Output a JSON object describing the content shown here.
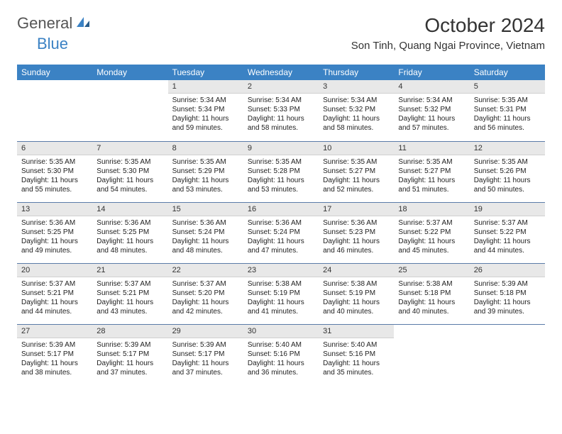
{
  "logo": {
    "text1": "General",
    "text2": "Blue"
  },
  "title": "October 2024",
  "location": "Son Tinh, Quang Ngai Province, Vietnam",
  "colors": {
    "header_bg": "#3b82c4",
    "header_fg": "#ffffff",
    "daynum_bg": "#e8e8e8",
    "week_border": "#5a7ba8",
    "logo_gray": "#555555",
    "logo_blue": "#3b82c4"
  },
  "day_headers": [
    "Sunday",
    "Monday",
    "Tuesday",
    "Wednesday",
    "Thursday",
    "Friday",
    "Saturday"
  ],
  "weeks": [
    [
      {
        "n": "",
        "sr": "",
        "ss": "",
        "dl": ""
      },
      {
        "n": "",
        "sr": "",
        "ss": "",
        "dl": ""
      },
      {
        "n": "1",
        "sr": "Sunrise: 5:34 AM",
        "ss": "Sunset: 5:34 PM",
        "dl": "Daylight: 11 hours and 59 minutes."
      },
      {
        "n": "2",
        "sr": "Sunrise: 5:34 AM",
        "ss": "Sunset: 5:33 PM",
        "dl": "Daylight: 11 hours and 58 minutes."
      },
      {
        "n": "3",
        "sr": "Sunrise: 5:34 AM",
        "ss": "Sunset: 5:32 PM",
        "dl": "Daylight: 11 hours and 58 minutes."
      },
      {
        "n": "4",
        "sr": "Sunrise: 5:34 AM",
        "ss": "Sunset: 5:32 PM",
        "dl": "Daylight: 11 hours and 57 minutes."
      },
      {
        "n": "5",
        "sr": "Sunrise: 5:35 AM",
        "ss": "Sunset: 5:31 PM",
        "dl": "Daylight: 11 hours and 56 minutes."
      }
    ],
    [
      {
        "n": "6",
        "sr": "Sunrise: 5:35 AM",
        "ss": "Sunset: 5:30 PM",
        "dl": "Daylight: 11 hours and 55 minutes."
      },
      {
        "n": "7",
        "sr": "Sunrise: 5:35 AM",
        "ss": "Sunset: 5:30 PM",
        "dl": "Daylight: 11 hours and 54 minutes."
      },
      {
        "n": "8",
        "sr": "Sunrise: 5:35 AM",
        "ss": "Sunset: 5:29 PM",
        "dl": "Daylight: 11 hours and 53 minutes."
      },
      {
        "n": "9",
        "sr": "Sunrise: 5:35 AM",
        "ss": "Sunset: 5:28 PM",
        "dl": "Daylight: 11 hours and 53 minutes."
      },
      {
        "n": "10",
        "sr": "Sunrise: 5:35 AM",
        "ss": "Sunset: 5:27 PM",
        "dl": "Daylight: 11 hours and 52 minutes."
      },
      {
        "n": "11",
        "sr": "Sunrise: 5:35 AM",
        "ss": "Sunset: 5:27 PM",
        "dl": "Daylight: 11 hours and 51 minutes."
      },
      {
        "n": "12",
        "sr": "Sunrise: 5:35 AM",
        "ss": "Sunset: 5:26 PM",
        "dl": "Daylight: 11 hours and 50 minutes."
      }
    ],
    [
      {
        "n": "13",
        "sr": "Sunrise: 5:36 AM",
        "ss": "Sunset: 5:25 PM",
        "dl": "Daylight: 11 hours and 49 minutes."
      },
      {
        "n": "14",
        "sr": "Sunrise: 5:36 AM",
        "ss": "Sunset: 5:25 PM",
        "dl": "Daylight: 11 hours and 48 minutes."
      },
      {
        "n": "15",
        "sr": "Sunrise: 5:36 AM",
        "ss": "Sunset: 5:24 PM",
        "dl": "Daylight: 11 hours and 48 minutes."
      },
      {
        "n": "16",
        "sr": "Sunrise: 5:36 AM",
        "ss": "Sunset: 5:24 PM",
        "dl": "Daylight: 11 hours and 47 minutes."
      },
      {
        "n": "17",
        "sr": "Sunrise: 5:36 AM",
        "ss": "Sunset: 5:23 PM",
        "dl": "Daylight: 11 hours and 46 minutes."
      },
      {
        "n": "18",
        "sr": "Sunrise: 5:37 AM",
        "ss": "Sunset: 5:22 PM",
        "dl": "Daylight: 11 hours and 45 minutes."
      },
      {
        "n": "19",
        "sr": "Sunrise: 5:37 AM",
        "ss": "Sunset: 5:22 PM",
        "dl": "Daylight: 11 hours and 44 minutes."
      }
    ],
    [
      {
        "n": "20",
        "sr": "Sunrise: 5:37 AM",
        "ss": "Sunset: 5:21 PM",
        "dl": "Daylight: 11 hours and 44 minutes."
      },
      {
        "n": "21",
        "sr": "Sunrise: 5:37 AM",
        "ss": "Sunset: 5:21 PM",
        "dl": "Daylight: 11 hours and 43 minutes."
      },
      {
        "n": "22",
        "sr": "Sunrise: 5:37 AM",
        "ss": "Sunset: 5:20 PM",
        "dl": "Daylight: 11 hours and 42 minutes."
      },
      {
        "n": "23",
        "sr": "Sunrise: 5:38 AM",
        "ss": "Sunset: 5:19 PM",
        "dl": "Daylight: 11 hours and 41 minutes."
      },
      {
        "n": "24",
        "sr": "Sunrise: 5:38 AM",
        "ss": "Sunset: 5:19 PM",
        "dl": "Daylight: 11 hours and 40 minutes."
      },
      {
        "n": "25",
        "sr": "Sunrise: 5:38 AM",
        "ss": "Sunset: 5:18 PM",
        "dl": "Daylight: 11 hours and 40 minutes."
      },
      {
        "n": "26",
        "sr": "Sunrise: 5:39 AM",
        "ss": "Sunset: 5:18 PM",
        "dl": "Daylight: 11 hours and 39 minutes."
      }
    ],
    [
      {
        "n": "27",
        "sr": "Sunrise: 5:39 AM",
        "ss": "Sunset: 5:17 PM",
        "dl": "Daylight: 11 hours and 38 minutes."
      },
      {
        "n": "28",
        "sr": "Sunrise: 5:39 AM",
        "ss": "Sunset: 5:17 PM",
        "dl": "Daylight: 11 hours and 37 minutes."
      },
      {
        "n": "29",
        "sr": "Sunrise: 5:39 AM",
        "ss": "Sunset: 5:17 PM",
        "dl": "Daylight: 11 hours and 37 minutes."
      },
      {
        "n": "30",
        "sr": "Sunrise: 5:40 AM",
        "ss": "Sunset: 5:16 PM",
        "dl": "Daylight: 11 hours and 36 minutes."
      },
      {
        "n": "31",
        "sr": "Sunrise: 5:40 AM",
        "ss": "Sunset: 5:16 PM",
        "dl": "Daylight: 11 hours and 35 minutes."
      },
      {
        "n": "",
        "sr": "",
        "ss": "",
        "dl": ""
      },
      {
        "n": "",
        "sr": "",
        "ss": "",
        "dl": ""
      }
    ]
  ]
}
